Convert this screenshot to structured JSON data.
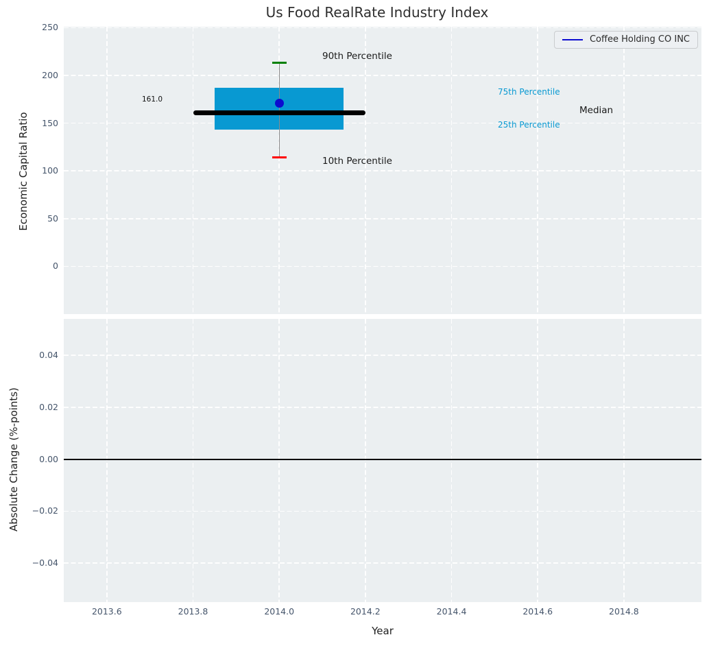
{
  "style": {
    "axes_background": "#ebeff1",
    "grid_color": "#ffffff",
    "tick_label_color": "#44546a",
    "accent_cyan": "#0899d2",
    "line_blue": "#0c0cd0"
  },
  "chart_data": [
    {
      "type": "boxplot",
      "title": "Us Food RealRate Industry Index",
      "xlabel": "Year",
      "ylabel": "Economic Capital Ratio",
      "xlim": [
        2013.5,
        2014.98
      ],
      "ylim": [
        -50,
        251
      ],
      "grid": true,
      "x_tick_values": [
        2013.6,
        2013.8,
        2014.0,
        2014.2,
        2014.4,
        2014.6,
        2014.8
      ],
      "x_tick_labels": [
        "2013.6",
        "2013.8",
        "2014.0",
        "2014.2",
        "2014.4",
        "2014.6",
        "2014.8"
      ],
      "y_tick_values": [
        250,
        200,
        150,
        100,
        50,
        0
      ],
      "y_tick_labels": [
        "250",
        "200",
        "150",
        "100",
        "50",
        "0"
      ],
      "legend": {
        "label": "Coffee Holding CO INC",
        "position": "upper right",
        "line_color": "#0c0cd0"
      },
      "box": {
        "x_center": 2014.0,
        "box_x_left": 2013.85,
        "box_x_right": 2014.15,
        "median_x_left": 2013.8,
        "median_x_right": 2014.2,
        "p10": 114,
        "p25": 143,
        "median": 161,
        "p75": 187,
        "p90": 213,
        "box_color": "#0899d2",
        "median_color": "#000000",
        "whisker_color": "#8a8a8a",
        "p90_cap_color": "#008000",
        "p10_cap_color": "#ff0000"
      },
      "company_point": {
        "x": 2014.0,
        "value": 171,
        "color": "#0c0cd0",
        "label": "Coffee Holding CO INC"
      },
      "annotations": {
        "median_value": "161.0",
        "p90": "90th Percentile",
        "p10": "10th Percentile",
        "p75": "75th Percentile",
        "p25": "25th Percentile",
        "median": "Median"
      }
    },
    {
      "type": "line",
      "xlabel": "Year",
      "ylabel": "Absolute Change (%-points)",
      "xlim": [
        2013.5,
        2014.98
      ],
      "ylim": [
        -0.055,
        0.054
      ],
      "grid": true,
      "x_tick_values": [
        2013.6,
        2013.8,
        2014.0,
        2014.2,
        2014.4,
        2014.6,
        2014.8
      ],
      "x_tick_labels": [
        "2013.6",
        "2013.8",
        "2014.0",
        "2014.2",
        "2014.4",
        "2014.6",
        "2014.8"
      ],
      "y_tick_values": [
        0.04,
        0.02,
        0.0,
        -0.02,
        -0.04
      ],
      "y_tick_labels": [
        "0.04",
        "0.02",
        "0.00",
        "−0.02",
        "−0.04"
      ],
      "zero_line": {
        "value": 0.0,
        "color": "#000000"
      },
      "series": []
    }
  ]
}
